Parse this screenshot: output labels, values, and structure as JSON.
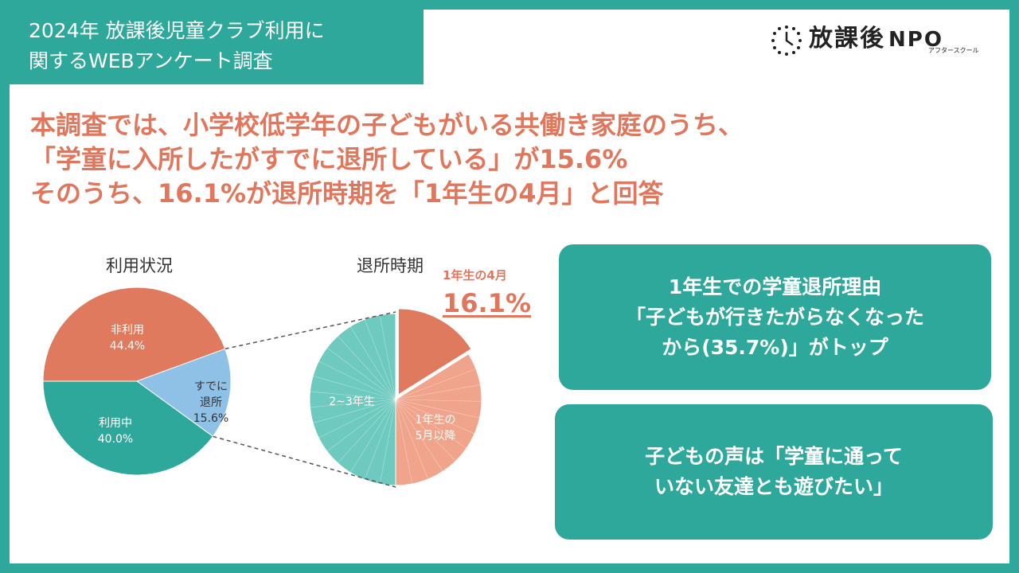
{
  "header": {
    "title_line1": "2024年 放課後児童クラブ利用に",
    "title_line2": "関するWEBアンケート調査"
  },
  "logo": {
    "main": "放課後",
    "npo": "NPO",
    "sub": "アフタースクール"
  },
  "headline": {
    "line1": "本調査では、小学校低学年の子どもがいる共働き家庭のうち、",
    "line2": "「学童に入所したがすでに退所している」が15.6%",
    "line3": "そのうち、16.1%が退所時期を「1年生の4月」と回答"
  },
  "callout": {
    "small": "1年生の4月",
    "big": "16.1%"
  },
  "boxes": {
    "box1_line1": "1年生での学童退所理由",
    "box1_line2": "「子どもが行きたがらなくなった",
    "box1_line3": "から(35.7%)」がトップ",
    "box2_line1": "子どもの声は「学童に通って",
    "box2_line2": "いない友達とも遊びたい」"
  },
  "colors": {
    "teal": "#2fa89c",
    "orange": "#e07a5f",
    "light_blue": "#8fc0e6",
    "light_teal": "#6ec9bf",
    "light_orange": "#f0a48b"
  },
  "chart_data": [
    {
      "type": "pie",
      "title": "利用状況",
      "slices": [
        {
          "label_lines": [
            "非利用",
            "44.4%"
          ],
          "value": 44.4,
          "color": "#e07a5f"
        },
        {
          "label_lines": [
            "すでに",
            "退所",
            "15.6%"
          ],
          "value": 15.6,
          "color": "#8fc0e6"
        },
        {
          "label_lines": [
            "利用中",
            "40.0%"
          ],
          "value": 40.0,
          "color": "#2fa89c"
        }
      ]
    },
    {
      "type": "pie",
      "title": "退所時期",
      "slices": [
        {
          "label_lines": [],
          "value": 16.1,
          "color": "#e07a5f"
        },
        {
          "label_lines": [
            "1年生の",
            "5月以降"
          ],
          "value": 33.9,
          "color": "#f0a48b"
        },
        {
          "label_lines": [
            "2~3年生"
          ],
          "value": 50.0,
          "color": "#6ec9bf"
        }
      ]
    }
  ]
}
